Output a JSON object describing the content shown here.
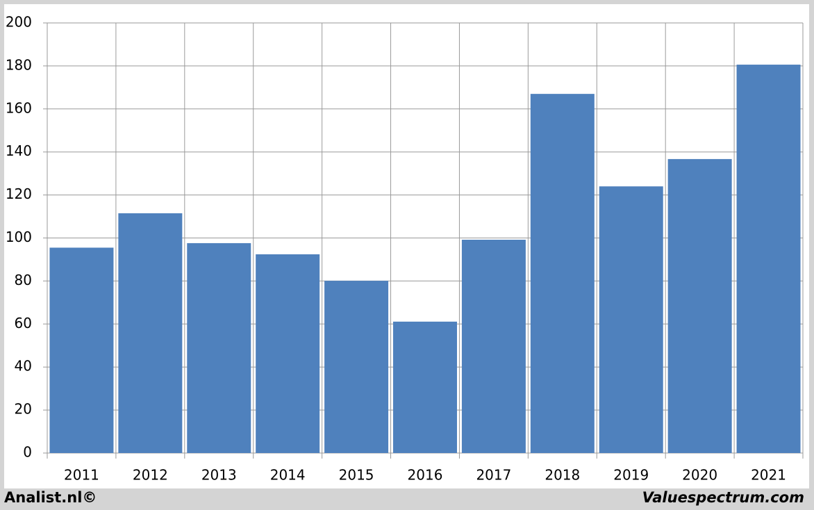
{
  "chart_data": {
    "type": "bar",
    "categories": [
      "2011",
      "2012",
      "2013",
      "2014",
      "2015",
      "2016",
      "2017",
      "2018",
      "2019",
      "2020",
      "2021"
    ],
    "values": [
      95.5,
      111.5,
      97.6,
      92.4,
      80.1,
      61.1,
      99.2,
      167,
      124,
      136.7,
      180.6
    ],
    "color": "#4f81bd",
    "ylim": [
      0,
      200
    ],
    "yticks": [
      0,
      20,
      40,
      60,
      80,
      100,
      120,
      140,
      160,
      180,
      200
    ],
    "grid": true,
    "footer_left": "Analist.nl©",
    "footer_right": "Valuespectrum.com"
  }
}
